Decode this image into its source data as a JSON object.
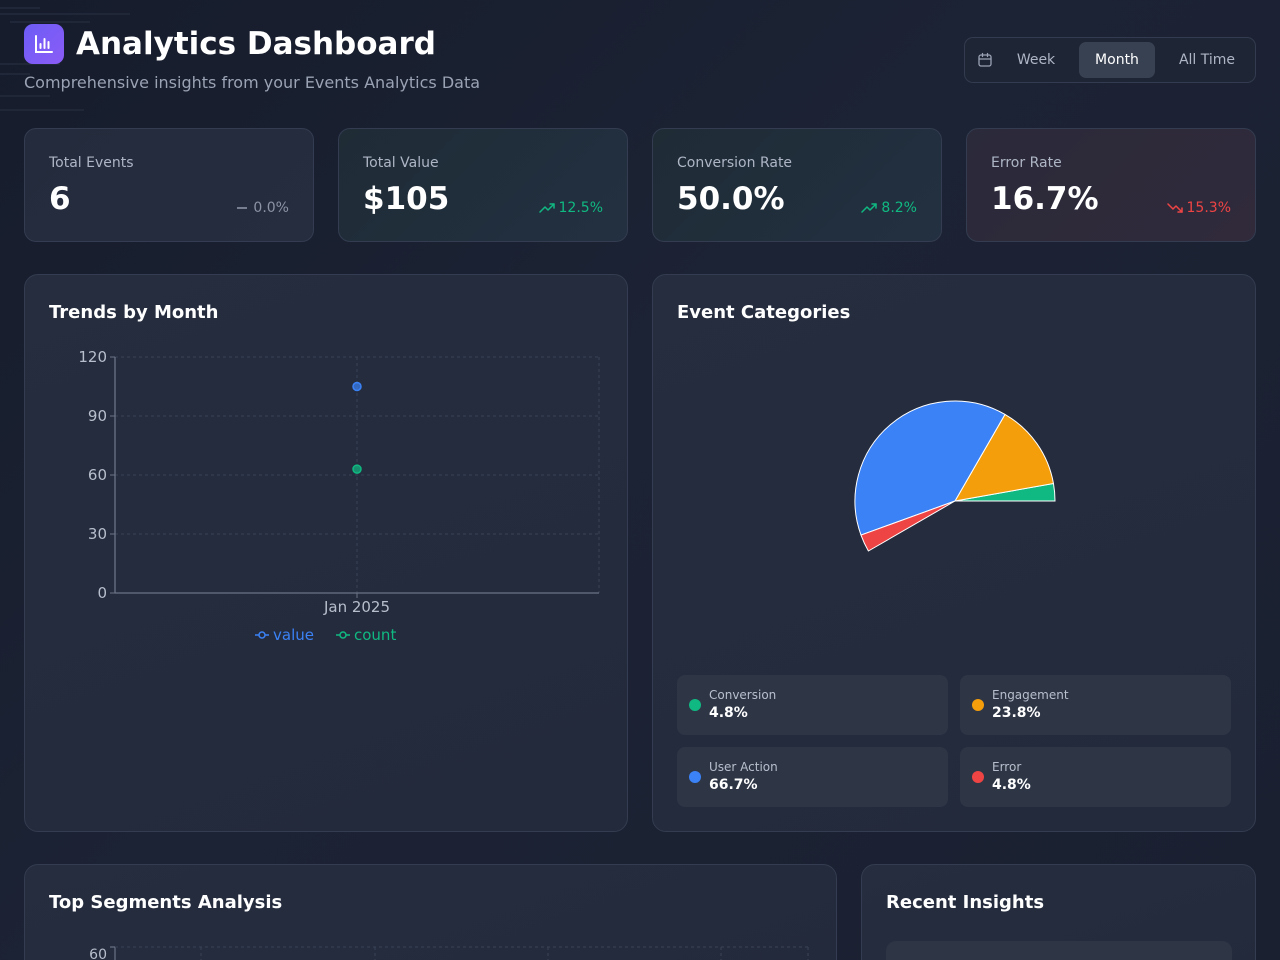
{
  "header": {
    "title": "Analytics Dashboard",
    "subtitle": "Comprehensive insights from your Events Analytics Data",
    "range_options": [
      "Week",
      "Month",
      "All Time"
    ],
    "active_range": "Month"
  },
  "kpis": [
    {
      "label": "Total Events",
      "value": "6",
      "delta": "0.0%",
      "trend": "neutral"
    },
    {
      "label": "Total Value",
      "value": "$105",
      "delta": "12.5%",
      "trend": "up"
    },
    {
      "label": "Conversion Rate",
      "value": "50.0%",
      "delta": "8.2%",
      "trend": "up"
    },
    {
      "label": "Error Rate",
      "value": "16.7%",
      "delta": "15.3%",
      "trend": "down"
    }
  ],
  "trends": {
    "title": "Trends by Month"
  },
  "categories": {
    "title": "Event Categories",
    "items": [
      {
        "name": "Conversion",
        "pct": "4.8%"
      },
      {
        "name": "Engagement",
        "pct": "23.8%"
      },
      {
        "name": "User Action",
        "pct": "66.7%"
      },
      {
        "name": "Error",
        "pct": "4.8%"
      }
    ]
  },
  "segments": {
    "title": "Top Segments Analysis",
    "first_tick": "60"
  },
  "insights": {
    "title": "Recent Insights"
  },
  "colors": {
    "accent": "#7c5cf6",
    "blue": "#3b82f6",
    "green": "#10b981",
    "orange": "#f59e0b",
    "red": "#ef4444"
  },
  "chart_data": [
    {
      "type": "scatter",
      "title": "Trends by Month",
      "categories": [
        "Jan 2025"
      ],
      "series": [
        {
          "name": "value",
          "values": [
            105
          ],
          "color": "#3b82f6"
        },
        {
          "name": "count",
          "values": [
            63
          ],
          "color": "#10b981"
        }
      ],
      "ylim": [
        0,
        120
      ],
      "yticks": [
        0,
        30,
        60,
        90,
        120
      ],
      "grid": true,
      "legend": "bottom"
    },
    {
      "type": "pie",
      "title": "Event Categories",
      "labels": [
        "Conversion",
        "Engagement",
        "User Action",
        "Error"
      ],
      "values": [
        4.8,
        23.8,
        66.7,
        4.8
      ],
      "colors": [
        "#10b981",
        "#f59e0b",
        "#3b82f6",
        "#ef4444"
      ]
    }
  ]
}
